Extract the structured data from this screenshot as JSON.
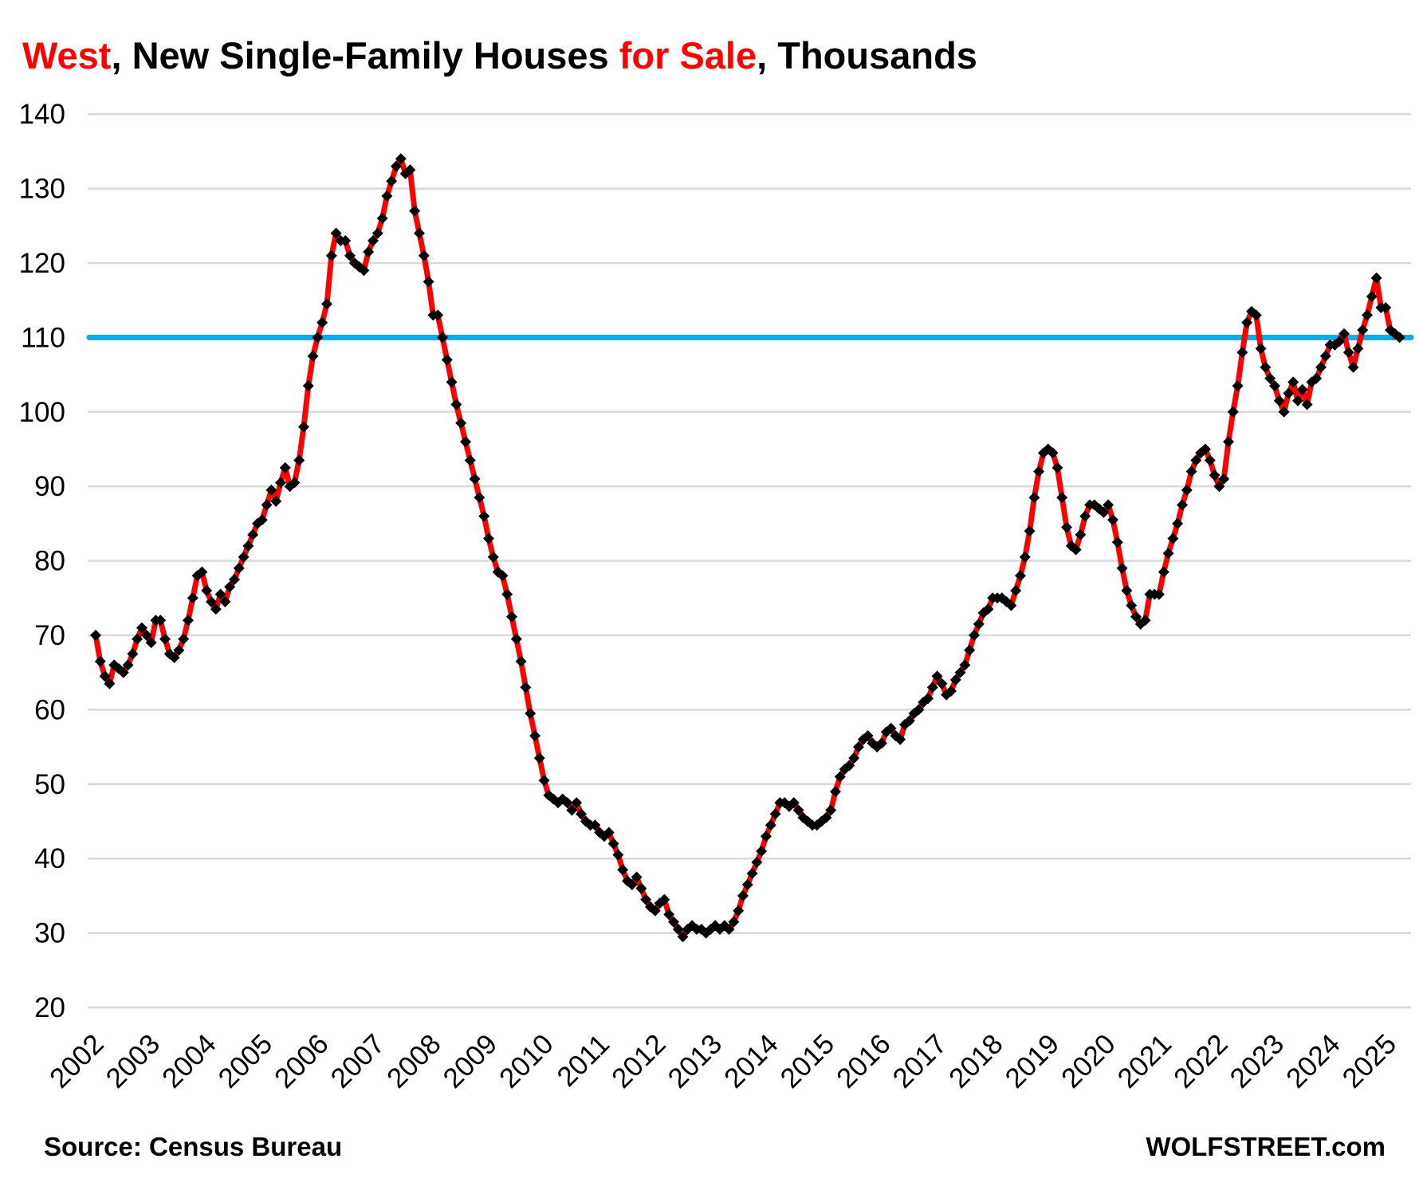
{
  "title": {
    "part1": "West",
    "part2": ", New Single-Family Houses ",
    "part3": "for Sale",
    "part4": ", Thousands"
  },
  "footer": {
    "source": "Source: Census Bureau",
    "brand": "WOLFSTREET.com"
  },
  "colors": {
    "series_line": "#ff0000",
    "marker": "#000000",
    "reference_line": "#00aeef",
    "gridline": "#d9d9d9",
    "title_accent": "#ff0000",
    "text": "#000000",
    "background": "#ffffff"
  },
  "chart_data": {
    "type": "line",
    "title": "West, New Single-Family Houses for Sale, Thousands",
    "xlabel": "",
    "ylabel": "",
    "ylim": [
      20,
      140
    ],
    "grid": "horizontal",
    "legend": "none",
    "frequency": "monthly",
    "x_start": "2002-01",
    "x_end": "2025-07",
    "x_tick_labels": [
      "2002",
      "2003",
      "2004",
      "2005",
      "2006",
      "2007",
      "2008",
      "2009",
      "2010",
      "2011",
      "2012",
      "2013",
      "2014",
      "2015",
      "2016",
      "2017",
      "2018",
      "2019",
      "2020",
      "2021",
      "2022",
      "2023",
      "2024",
      "2025"
    ],
    "y_ticks": [
      20,
      30,
      40,
      50,
      60,
      70,
      80,
      90,
      100,
      110,
      120,
      130,
      140
    ],
    "reference_line_value": 110,
    "marker_shape": "diamond",
    "series": [
      {
        "name": "New single-family houses for sale, West region, thousands",
        "values": [
          70,
          66.5,
          64.5,
          63.5,
          66,
          65.5,
          65,
          66,
          67.5,
          69.5,
          71,
          70,
          69,
          72,
          72,
          69.5,
          67.5,
          67,
          68,
          69.5,
          72,
          75,
          78,
          78.5,
          76,
          74.5,
          73.5,
          75.5,
          74.5,
          76.5,
          77.5,
          79,
          80.5,
          82,
          83.5,
          85,
          85.5,
          87.5,
          89.5,
          88,
          90.5,
          92.5,
          90,
          90.5,
          93.5,
          98,
          103.5,
          107.5,
          110,
          112,
          114.5,
          121,
          124,
          123,
          123,
          121,
          120,
          119.5,
          119,
          121.5,
          123,
          124,
          126,
          129,
          131,
          133,
          134,
          132,
          132.5,
          127,
          124,
          121,
          117.5,
          113,
          113,
          110,
          107,
          104,
          101,
          98.5,
          96,
          93.5,
          91,
          88.5,
          86,
          83,
          80.5,
          78.5,
          78,
          75.5,
          72.5,
          69.5,
          66.5,
          63,
          59.5,
          56.5,
          53.5,
          50.5,
          48.5,
          48,
          47.5,
          48,
          47.5,
          46.5,
          47.5,
          46,
          45,
          44.5,
          44.5,
          43.5,
          43,
          43.5,
          42,
          40.5,
          38.5,
          37,
          36.5,
          37.5,
          36,
          34.5,
          33.5,
          33,
          34,
          34.5,
          32.5,
          31.5,
          30.5,
          29.5,
          30.5,
          31,
          30.5,
          30.5,
          30,
          30.5,
          31,
          30.5,
          31,
          30.5,
          31.5,
          33,
          35,
          36.5,
          38,
          39.5,
          41,
          43,
          44.5,
          46,
          47.5,
          47.5,
          47,
          47.5,
          46.5,
          45.5,
          45,
          44.5,
          44.5,
          45,
          45.5,
          46.5,
          49,
          51,
          52,
          52.5,
          53.5,
          55,
          56,
          56.5,
          55.5,
          55,
          55.5,
          57,
          57.5,
          56.5,
          56,
          58,
          58.5,
          59.5,
          60,
          61,
          61.5,
          63,
          64.5,
          63.5,
          62,
          62.5,
          64,
          65,
          66,
          68,
          70,
          71.5,
          73,
          73.5,
          75,
          75,
          75,
          74.5,
          74,
          76,
          78,
          80.5,
          84,
          88.5,
          92,
          94.5,
          95,
          94.5,
          92.5,
          88.5,
          84.5,
          82,
          81.5,
          83.5,
          86,
          87.5,
          87.5,
          87,
          86.5,
          87.5,
          85.5,
          82.5,
          79,
          76,
          74,
          72.5,
          71.5,
          72,
          75.5,
          75.5,
          75.5,
          78.5,
          81,
          83,
          85,
          87.5,
          89.5,
          92,
          93.5,
          94.5,
          95,
          93.5,
          91.5,
          90,
          91,
          96,
          100,
          103.5,
          108,
          112,
          113.5,
          113,
          108.5,
          106,
          104.5,
          103.5,
          101.5,
          100,
          102.5,
          104,
          101.5,
          103,
          101,
          104,
          104.5,
          106,
          107.5,
          109,
          109,
          109.5,
          110.5,
          108,
          106,
          108.5,
          111,
          113,
          115.5,
          118,
          114,
          114,
          111,
          110.5,
          110
        ]
      }
    ]
  }
}
